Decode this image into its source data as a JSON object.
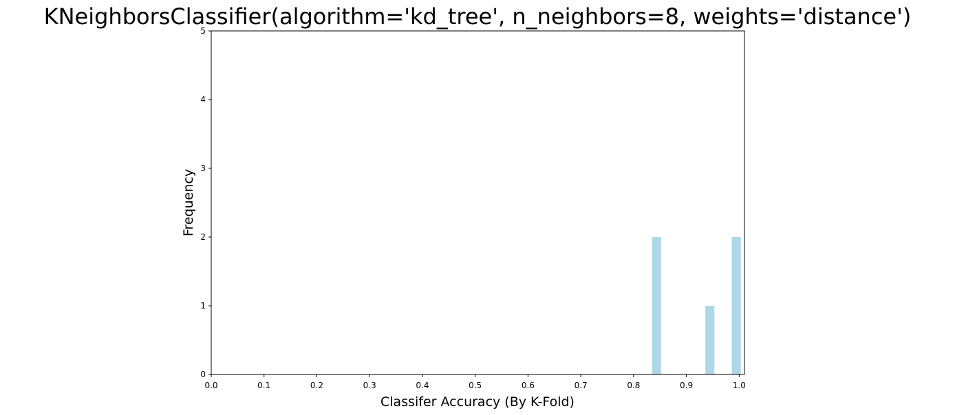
{
  "chart_data": {
    "type": "bar",
    "title": "KNeighborsClassifier(algorithm='kd_tree', n_neighbors=8, weights='distance')",
    "xlabel": "Classifer Accuracy (By K-Fold)",
    "ylabel": "Frequency",
    "xlim": [
      0.0,
      1.01
    ],
    "ylim": [
      0,
      5
    ],
    "xticks": [
      "0.0",
      "0.1",
      "0.2",
      "0.3",
      "0.4",
      "0.5",
      "0.6",
      "0.7",
      "0.8",
      "0.9",
      "1.0"
    ],
    "yticks": [
      "0",
      "1",
      "2",
      "3",
      "4",
      "5"
    ],
    "bar_color": "#add8e6",
    "bars": [
      {
        "x_start": 0.835,
        "x_end": 0.852,
        "value": 2
      },
      {
        "x_start": 0.936,
        "x_end": 0.953,
        "value": 1
      },
      {
        "x_start": 0.986,
        "x_end": 1.003,
        "value": 2
      }
    ],
    "grid": false
  }
}
